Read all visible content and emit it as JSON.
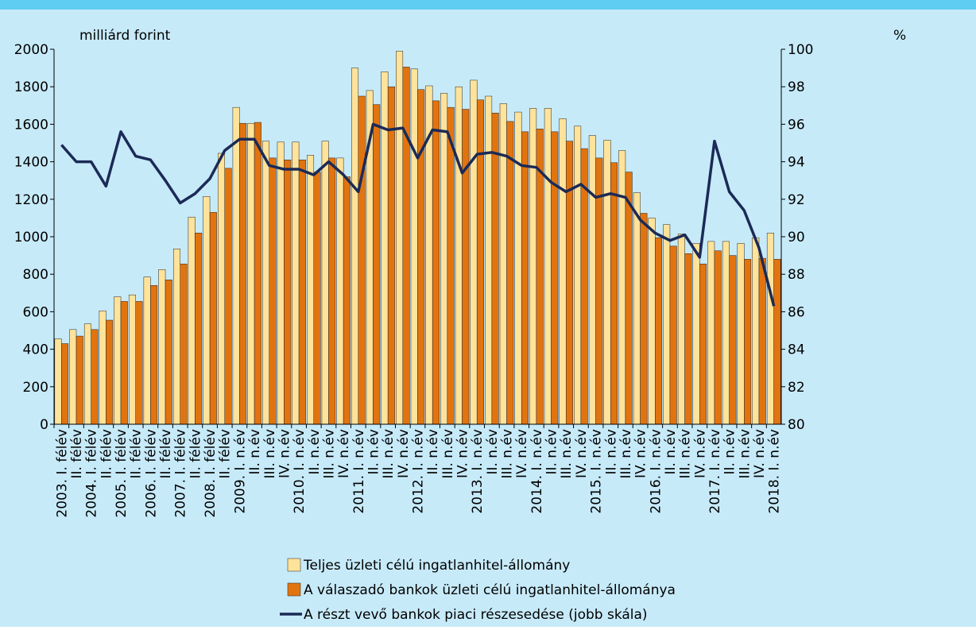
{
  "chart_data": {
    "type": "bar",
    "y_label": "milliárd forint",
    "y2_label": "%",
    "categories": [
      "2003. I. félév",
      "II. félév",
      "2004. I. félév",
      "II. félév",
      "2005. I. félév",
      "II. félév",
      "2006. I. félév",
      "II. félév",
      "2007. I. félév",
      "II. félév",
      "2008. I. félév",
      "II. félév",
      "2009. I. n.év",
      "II. n.év",
      "III. n.év",
      "IV. n.év",
      "2010. I. n.év",
      "II. n.év",
      "III. n.év",
      "IV. n.év",
      "2011. I. n.év",
      "II. n.év",
      "III. n.év",
      "IV. n.év",
      "2012. I. n.év",
      "II. n.év",
      "III. n.év",
      "IV. n.év",
      "2013. I. n.év",
      "II. n.év",
      "III. n.év",
      "IV. n.év",
      "2014. I. n.év",
      "II. n.év",
      "III. n.év",
      "IV. n.év",
      "2015. I. n.év",
      "II. n.év",
      "III. n.év",
      "IV. n.év",
      "2016. I. n.év",
      "II. n.év",
      "III. n.év",
      "IV. n.év",
      "2017. I. n.év",
      "II. n.év",
      "III. n.év",
      "IV. n.év",
      "2018. I. n.év"
    ],
    "series": [
      {
        "name": "Teljes üzleti célú ingatlanhitel-állomány",
        "type": "bar",
        "color": "#ffe39a",
        "values": [
          455,
          505,
          535,
          605,
          680,
          690,
          785,
          825,
          935,
          1105,
          1215,
          1445,
          1690,
          1605,
          1510,
          1505,
          1505,
          1435,
          1510,
          1420,
          1900,
          1780,
          1880,
          1990,
          1895,
          1805,
          1765,
          1800,
          1835,
          1750,
          1710,
          1665,
          1685,
          1685,
          1630,
          1590,
          1540,
          1515,
          1460,
          1235,
          1100,
          1065,
          1015,
          965,
          975,
          975,
          965,
          995,
          1020
        ]
      },
      {
        "name": "A válaszadó bankok üzleti célú ingatlanhitel-állománya",
        "type": "bar",
        "color": "#e2740f",
        "values": [
          430,
          470,
          505,
          555,
          655,
          655,
          740,
          770,
          855,
          1020,
          1130,
          1365,
          1605,
          1610,
          1420,
          1410,
          1410,
          1345,
          1420,
          1320,
          1750,
          1705,
          1800,
          1905,
          1785,
          1725,
          1690,
          1680,
          1730,
          1660,
          1615,
          1560,
          1575,
          1560,
          1510,
          1470,
          1420,
          1395,
          1345,
          1125,
          995,
          950,
          910,
          855,
          925,
          900,
          880,
          885,
          880
        ]
      },
      {
        "name": "A részt vevő bankok piaci részesedése (jobb skála)",
        "type": "line",
        "axis": "y2",
        "color": "#1b2a56",
        "values": [
          94.9,
          94.0,
          94.0,
          92.7,
          95.6,
          94.3,
          94.1,
          93.0,
          91.8,
          92.3,
          93.1,
          94.6,
          95.2,
          95.2,
          93.8,
          93.6,
          93.6,
          93.3,
          94.0,
          93.3,
          92.4,
          96.0,
          95.7,
          95.8,
          94.2,
          95.7,
          95.6,
          93.4,
          94.4,
          94.5,
          94.3,
          93.8,
          93.7,
          92.9,
          92.4,
          92.8,
          92.1,
          92.3,
          92.1,
          90.9,
          90.2,
          89.8,
          90.1,
          88.9,
          95.1,
          92.4,
          91.4,
          89.4,
          86.3
        ]
      }
    ],
    "ylim": [
      0,
      2000
    ],
    "yticks": [
      0,
      200,
      400,
      600,
      800,
      1000,
      1200,
      1400,
      1600,
      1800,
      2000
    ],
    "y2lim": [
      80,
      100
    ],
    "y2ticks": [
      80,
      82,
      84,
      86,
      88,
      90,
      92,
      94,
      96,
      98,
      100
    ]
  }
}
